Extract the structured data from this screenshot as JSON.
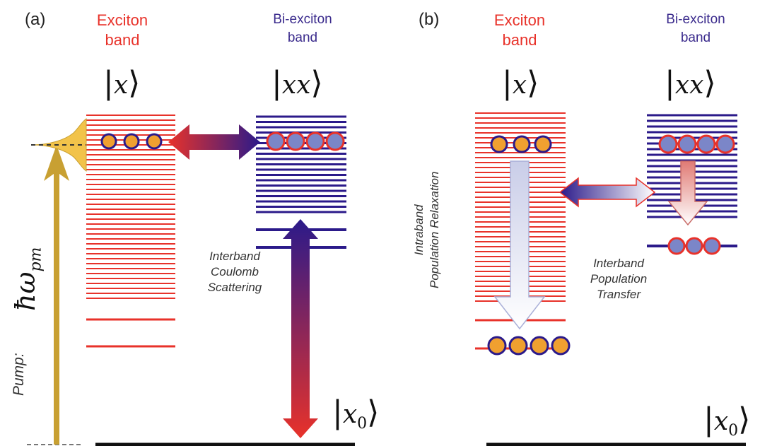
{
  "panels": [
    {
      "letter": "(a)",
      "exciton_band": {
        "line1": "Exciton",
        "line2": "band"
      },
      "biexciton_band": {
        "line1": "Bi-exciton",
        "line2": "band"
      },
      "ket_x": "x",
      "ket_xx": "xx",
      "ket_x0": "x",
      "ket_x0_sub": "0",
      "annotation": {
        "line1": "Interband",
        "line2": "Coulomb",
        "line3": "Scattering"
      },
      "pump_label": "Pump:",
      "pump_symbol": "ħω",
      "pump_symbol_sub": "pm"
    },
    {
      "letter": "(b)",
      "exciton_band": {
        "line1": "Exciton",
        "line2": "band"
      },
      "biexciton_band": {
        "line1": "Bi-exciton",
        "line2": "band"
      },
      "ket_x": "x",
      "ket_xx": "xx",
      "ket_x0": "x",
      "ket_x0_sub": "0",
      "relaxation": {
        "line1": "Intraband",
        "line2": "Population Relaxation"
      },
      "annotation": {
        "line1": "Interband",
        "line2": "Population",
        "line3": "Transfer"
      }
    }
  ],
  "colors": {
    "exciton": "#e8322a",
    "biexciton": "#2b1a8a",
    "pump": "#c8a032",
    "particle_fill": "#f0a030",
    "ground": "#111111"
  }
}
